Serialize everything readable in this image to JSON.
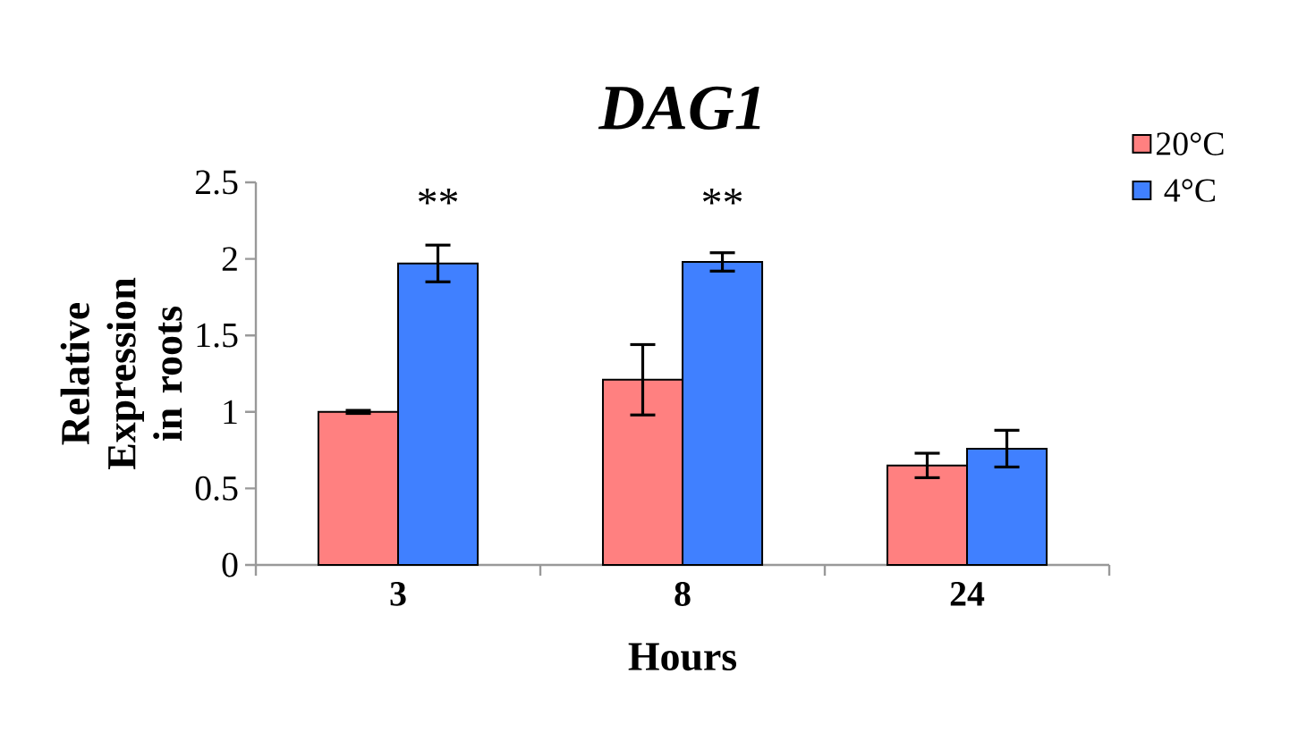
{
  "chart_data": {
    "type": "bar",
    "title": "DAG1",
    "xlabel": "Hours",
    "ylabel": "Relative Expression in roots",
    "categories": [
      "3",
      "8",
      "24"
    ],
    "series": [
      {
        "name": "20°C",
        "color": "#ff8080",
        "values": [
          1.0,
          1.21,
          0.65
        ],
        "errors": [
          0.01,
          0.23,
          0.08
        ]
      },
      {
        "name": "4°C",
        "color": "#4080ff",
        "values": [
          1.97,
          1.98,
          0.76
        ],
        "errors": [
          0.12,
          0.06,
          0.12
        ]
      }
    ],
    "annotations": [
      "**",
      "**"
    ],
    "ylim": [
      0,
      2.5
    ],
    "yticks": [
      0,
      0.5,
      1,
      1.5,
      2,
      2.5
    ],
    "grid": false,
    "legend": "right"
  }
}
